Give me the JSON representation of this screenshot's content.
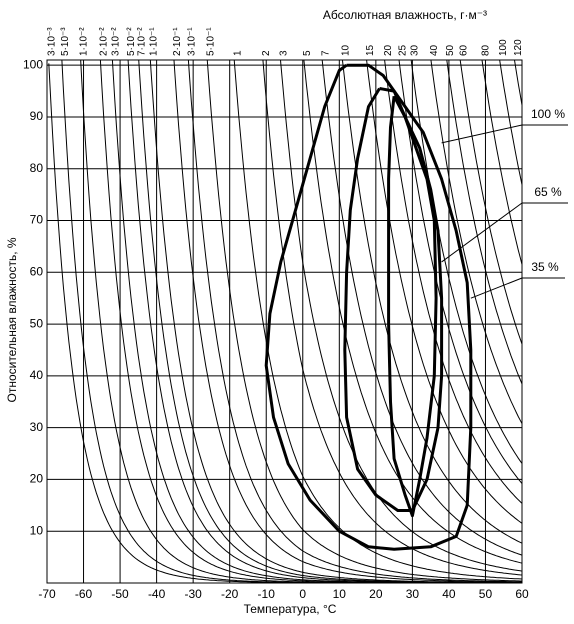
{
  "chart_data": {
    "type": "line",
    "title": "Абсолютная влажность, г·м⁻³",
    "x_label": "Температура, °С",
    "y_label": "Относительная влажность, %",
    "xlim": [
      -70,
      60
    ],
    "xticks": [
      -70,
      -60,
      -50,
      -40,
      -30,
      -20,
      -10,
      0,
      10,
      20,
      30,
      40,
      50,
      60
    ],
    "ylim": [
      0,
      101
    ],
    "yticks": [
      10,
      20,
      30,
      40,
      50,
      60,
      70,
      80,
      90,
      100
    ],
    "grid": true,
    "isolines": [
      {
        "value": 0.003,
        "label": "3·10⁻³"
      },
      {
        "value": 0.005,
        "label": "5·10⁻³"
      },
      {
        "value": 0.01,
        "label": "1·10⁻²"
      },
      {
        "value": 0.02,
        "label": "2·10⁻²"
      },
      {
        "value": 0.03,
        "label": "3·10⁻²"
      },
      {
        "value": 0.05,
        "label": "5·10⁻²"
      },
      {
        "value": 0.07,
        "label": "7·10⁻²"
      },
      {
        "value": 0.1,
        "label": "1·10⁻¹"
      },
      {
        "value": 0.2,
        "label": "2·10⁻¹"
      },
      {
        "value": 0.3,
        "label": "3·10⁻¹"
      },
      {
        "value": 0.5,
        "label": "5·10⁻¹"
      },
      1,
      2,
      3,
      5,
      7,
      10,
      15,
      20,
      25,
      30,
      40,
      50,
      60,
      80,
      100,
      120
    ],
    "series": [
      {
        "name": "100 %",
        "color": "#000000",
        "x": [
          12,
          18,
          22,
          27,
          33,
          38,
          42,
          45,
          46,
          46,
          45,
          42,
          35,
          25,
          18,
          10,
          2,
          -4,
          -8,
          -10,
          -9,
          -6,
          -2,
          2,
          6,
          10,
          12
        ],
        "values": [
          100,
          100,
          98,
          93,
          87,
          78,
          68,
          58,
          45,
          30,
          15,
          9,
          7,
          6.5,
          7,
          10,
          16,
          23,
          32,
          42,
          52,
          62,
          72,
          82,
          92,
          99,
          100
        ]
      },
      {
        "name": "65 %",
        "color": "#000000",
        "x": [
          21,
          25,
          28,
          32,
          35,
          37,
          38,
          38,
          37,
          34,
          30,
          26,
          20,
          15,
          12,
          11.5,
          12,
          13,
          15,
          18,
          21
        ],
        "values": [
          95.5,
          95,
          90,
          84,
          76,
          68,
          55,
          40,
          30,
          20,
          14,
          14,
          17,
          22,
          32,
          45,
          60,
          72,
          82,
          92,
          95.5
        ]
      },
      {
        "name": "35 %",
        "color": "#000000",
        "x": [
          25,
          28,
          31,
          34,
          36,
          36.5,
          36,
          34,
          32,
          30,
          28,
          25,
          24,
          23.5,
          23.5,
          23.5,
          24,
          25
        ],
        "values": [
          94,
          90,
          84,
          78,
          70,
          55,
          40,
          28,
          20,
          13,
          17,
          24,
          35,
          50,
          65,
          78,
          88,
          94
        ]
      }
    ]
  }
}
